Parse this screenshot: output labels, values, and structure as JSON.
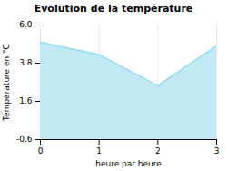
{
  "chart_data": {
    "type": "area",
    "title": "Evolution de la température",
    "xlabel": "heure par heure",
    "ylabel": "Température en °C",
    "x": [
      0,
      1,
      2,
      3
    ],
    "values": [
      5.0,
      4.3,
      2.5,
      4.8
    ],
    "xlim": [
      0,
      3
    ],
    "ylim": [
      -0.6,
      6.0
    ],
    "xticks": [
      0,
      1,
      2,
      3
    ],
    "yticks": [
      -0.6,
      1.6,
      3.8,
      {
        "value": 6.0,
        "label": "6.0"
      }
    ],
    "colors": [
      "#c0e8f5",
      "#85d4e8"
    ],
    "line_style": "dotted",
    "grid": "x"
  }
}
